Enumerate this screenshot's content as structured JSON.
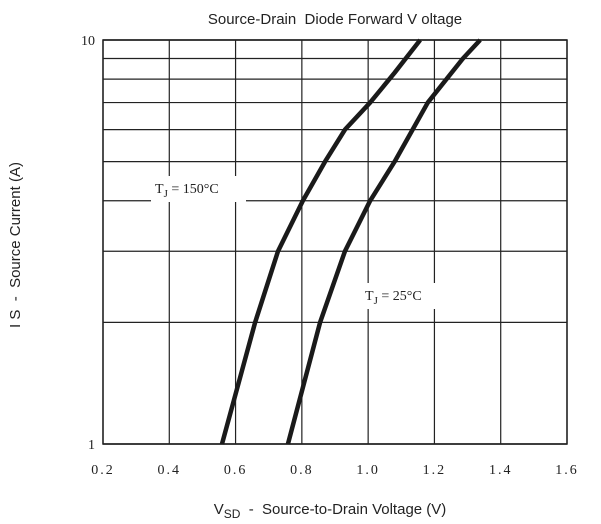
{
  "chart_data": {
    "type": "line",
    "title": "Source-Drain  Diode Forward V oltage",
    "xlabel": [
      "V",
      "SD",
      "  -  Source-to-Drain Voltage (V)"
    ],
    "ylabel": "I S  -  Source Current (A)",
    "xlim": [
      0.2,
      1.6
    ],
    "xticks": [
      0.2,
      0.4,
      0.6,
      0.8,
      {
        "value": 1,
        "label": "1.0"
      },
      1.2,
      1.4,
      1.6
    ],
    "ylim": [
      1,
      10
    ],
    "yticks": [
      1,
      10
    ],
    "yminor": [
      2,
      3,
      4,
      5,
      6,
      7,
      8,
      9
    ],
    "log_y": true,
    "grid": true,
    "series": [
      {
        "label": [
          "T",
          "J",
          " = 150°C"
        ],
        "color": "#1a1a1a",
        "x": [
          0.559,
          0.659,
          0.728,
          0.803,
          0.87,
          0.93,
          1.006,
          1.08,
          1.157
        ],
        "values": [
          1,
          2,
          3,
          4,
          5,
          6,
          7,
          8.3,
          10
        ]
      },
      {
        "label": [
          "T",
          "J",
          " = 25°C"
        ],
        "color": "#1a1a1a",
        "x": [
          0.758,
          0.855,
          0.93,
          1.006,
          1.08,
          1.18,
          1.286,
          1.338
        ],
        "values": [
          1,
          2,
          3,
          4,
          5,
          7,
          9,
          10
        ]
      }
    ]
  }
}
